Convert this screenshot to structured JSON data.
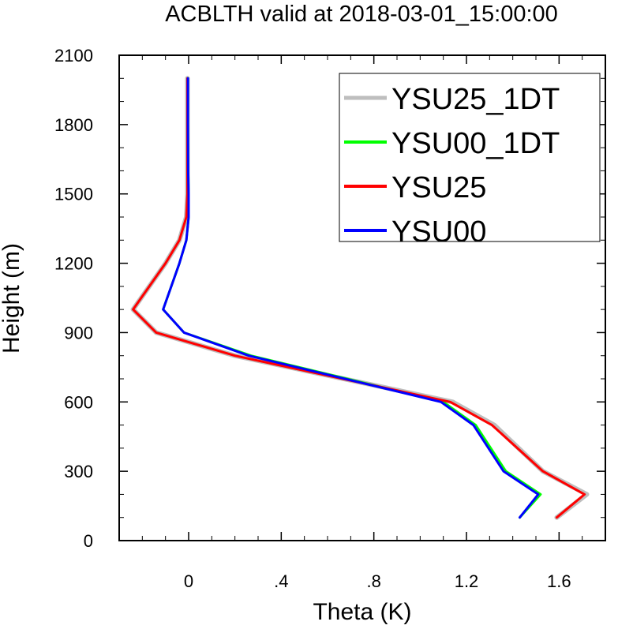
{
  "chart_data": {
    "type": "line",
    "title": "ACBLTH valid at 2018-03-01_15:00:00",
    "xlabel": "Theta (K)",
    "ylabel": "Height (m)",
    "xlim": [
      -0.3,
      1.8
    ],
    "ylim": [
      0,
      2100
    ],
    "x_ticks": [
      0,
      0.4,
      0.8,
      1.2,
      1.6
    ],
    "x_tick_labels": [
      "0",
      ".4",
      ".8",
      "1.2",
      "1.6"
    ],
    "y_ticks": [
      0,
      300,
      600,
      900,
      1200,
      1500,
      1800,
      2100
    ],
    "y_tick_labels": [
      "0",
      "300",
      "600",
      "900",
      "1200",
      "1500",
      "1800",
      "2100"
    ],
    "legend_position": "top-right",
    "series": [
      {
        "name": "YSU25_1DT",
        "color": "#bebebe",
        "points": [
          [
            1.59,
            100
          ],
          [
            1.72,
            200
          ],
          [
            1.53,
            300
          ],
          [
            1.32,
            500
          ],
          [
            1.14,
            600
          ],
          [
            0.2,
            800
          ],
          [
            -0.14,
            900
          ],
          [
            -0.24,
            1000
          ],
          [
            -0.1,
            1200
          ],
          [
            -0.04,
            1300
          ],
          [
            -0.01,
            1400
          ],
          [
            -0.005,
            1500
          ],
          [
            -0.005,
            1600
          ],
          [
            -0.005,
            1800
          ],
          [
            -0.005,
            2000
          ]
        ]
      },
      {
        "name": "YSU00_1DT",
        "color": "#00ff00",
        "points": [
          [
            1.43,
            100
          ],
          [
            1.52,
            200
          ],
          [
            1.37,
            300
          ],
          [
            1.24,
            500
          ],
          [
            1.1,
            600
          ],
          [
            0.27,
            800
          ],
          [
            -0.02,
            900
          ],
          [
            -0.11,
            1000
          ],
          [
            -0.04,
            1200
          ],
          [
            -0.01,
            1300
          ],
          [
            0.0,
            1400
          ],
          [
            0.0,
            1500
          ],
          [
            -0.002,
            1600
          ],
          [
            -0.003,
            1800
          ],
          [
            -0.003,
            2000
          ]
        ]
      },
      {
        "name": "YSU25",
        "color": "#ff0000",
        "points": [
          [
            1.59,
            100
          ],
          [
            1.71,
            200
          ],
          [
            1.53,
            300
          ],
          [
            1.31,
            500
          ],
          [
            1.13,
            600
          ],
          [
            0.2,
            800
          ],
          [
            -0.14,
            900
          ],
          [
            -0.24,
            1000
          ],
          [
            -0.1,
            1200
          ],
          [
            -0.04,
            1300
          ],
          [
            -0.01,
            1400
          ],
          [
            -0.005,
            1500
          ],
          [
            -0.005,
            1600
          ],
          [
            -0.005,
            1800
          ],
          [
            -0.005,
            2000
          ]
        ]
      },
      {
        "name": "YSU00",
        "color": "#0000ff",
        "points": [
          [
            1.43,
            100
          ],
          [
            1.51,
            200
          ],
          [
            1.36,
            300
          ],
          [
            1.23,
            500
          ],
          [
            1.09,
            600
          ],
          [
            0.26,
            800
          ],
          [
            -0.02,
            900
          ],
          [
            -0.11,
            1000
          ],
          [
            -0.04,
            1200
          ],
          [
            -0.01,
            1300
          ],
          [
            0.0,
            1400
          ],
          [
            0.0,
            1500
          ],
          [
            -0.002,
            1600
          ],
          [
            -0.003,
            1800
          ],
          [
            -0.003,
            2000
          ]
        ]
      }
    ]
  }
}
